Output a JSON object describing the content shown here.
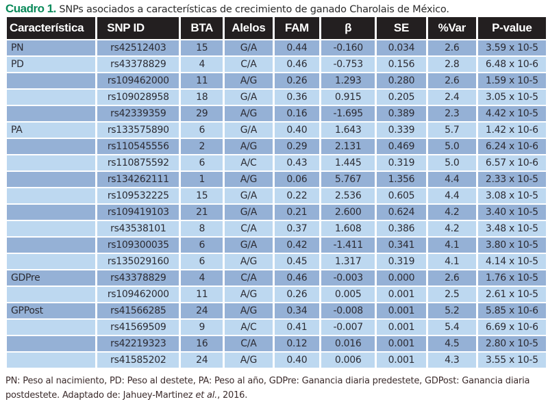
{
  "title": {
    "label": "Cuadro 1.",
    "text": "SNPs asociados a características de crecimiento de ganado Charolais de México."
  },
  "table": {
    "headers": [
      "Característica",
      "SNP ID",
      "BTA",
      "Alelos",
      "FAM",
      "β",
      "SE",
      "%Var",
      "P-value"
    ],
    "rows": [
      [
        "PN",
        "rs42512403",
        "15",
        "G/A",
        "0.44",
        "-0.160",
        "0.034",
        "2.6",
        "3.59 x 10-5"
      ],
      [
        "PD",
        "rs43378829",
        "4",
        "C/A",
        "0.46",
        "-0.753",
        "0.156",
        "2.8",
        "6.48 x 10-6"
      ],
      [
        "",
        "rs109462000",
        "11",
        "A/G",
        "0.26",
        "1.293",
        "0.280",
        "2.6",
        "1.59 x 10-5"
      ],
      [
        "",
        "rs109028958",
        "18",
        "G/A",
        "0.36",
        "0.915",
        "0.205",
        "2.4",
        "3.05 x 10-5"
      ],
      [
        "",
        "rs42339359",
        "29",
        "A/G",
        "0.16",
        "-1.695",
        "0.389",
        "2.3",
        "4.42 x 10-5"
      ],
      [
        "PA",
        "rs133575890",
        "6",
        "G/A",
        "0.40",
        "1.643",
        "0.339",
        "5.7",
        "1.42 x 10-6"
      ],
      [
        "",
        "rs110545556",
        "2",
        "A/G",
        "0.29",
        "2.131",
        "0.469",
        "5.0",
        "6.24 x 10-6"
      ],
      [
        "",
        "rs110875592",
        "6",
        "A/C",
        "0.43",
        "1.445",
        "0.319",
        "5.0",
        "6.57 x 10-6"
      ],
      [
        "",
        "rs134262111",
        "1",
        "A/G",
        "0.06",
        "5.767",
        "1.356",
        "4.4",
        "2.33 x 10-5"
      ],
      [
        "",
        "rs109532225",
        "15",
        "G/A",
        "0.22",
        "2.536",
        "0.605",
        "4.4",
        "3.08 x 10-5"
      ],
      [
        "",
        "rs109419103",
        "21",
        "G/A",
        "0.21",
        "2.600",
        "0.624",
        "4.2",
        "3.40 x 10-5"
      ],
      [
        "",
        "rs43538101",
        "8",
        "C/A",
        "0.37",
        "1.608",
        "0.386",
        "4.2",
        "3.48 x 10-5"
      ],
      [
        "",
        "rs109300035",
        "6",
        "G/A",
        "0.42",
        "-1.411",
        "0.341",
        "4.1",
        "3.80 x 10-5"
      ],
      [
        "",
        "rs135029160",
        "6",
        "A/G",
        "0.45",
        "1.317",
        "0.319",
        "4.1",
        "4.14 x 10-5"
      ],
      [
        "GDPre",
        "rs43378829",
        "4",
        "C/A",
        "0.46",
        "-0.003",
        "0.000",
        "2.6",
        "1.76 x 10-5"
      ],
      [
        "",
        "rs109462000",
        "11",
        "A/G",
        "0.26",
        "0.005",
        "0.001",
        "2.5",
        "2.61 x 10-5"
      ],
      [
        "GPPost",
        "rs41566285",
        "24",
        "A/G",
        "0.34",
        "-0.008",
        "0.001",
        "5.2",
        "5.85 x 10-6"
      ],
      [
        "",
        "rs41569509",
        "9",
        "A/C",
        "0.41",
        "-0.007",
        "0.001",
        "5.4",
        "6.69 x 10-6"
      ],
      [
        "",
        "rs42219323",
        "16",
        "C/A",
        "0.12",
        "0.016",
        "0.001",
        "4.5",
        "2.80 x 10-5"
      ],
      [
        "",
        "rs41585202",
        "24",
        "A/G",
        "0.40",
        "0.006",
        "0.001",
        "4.3",
        "3.55 x 10-5"
      ]
    ]
  },
  "footer": {
    "text": "PN: Peso al nacimiento, PD: Peso al destete, PA: Peso al año, GDPre: Ganancia diaria predestete, GDPost: Ganancia diaria postdestete. Adaptado de: Jahuey-Martinez ",
    "etal": "et al.",
    "year": ", 2016."
  },
  "colors": {
    "title_label": "#0a8a5a",
    "header_bg": "#231f20",
    "row_dark": "#95b1d6",
    "row_light": "#bdd8f0"
  }
}
